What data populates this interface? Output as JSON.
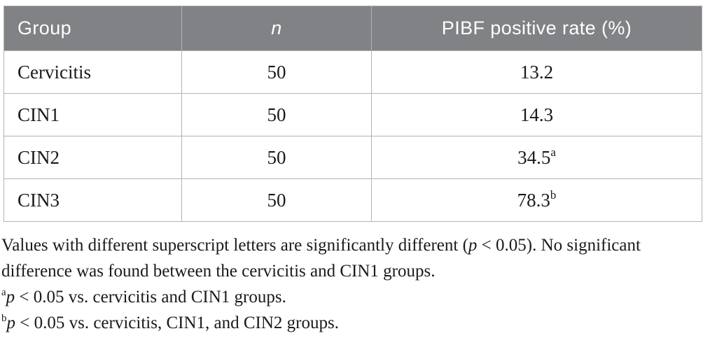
{
  "table": {
    "headers": [
      {
        "label": "Group"
      },
      {
        "label": "n"
      },
      {
        "label": "PIBF positive rate (%)"
      }
    ],
    "rows": [
      {
        "group": "Cervicitis",
        "n": "50",
        "rate": "13.2",
        "sup": ""
      },
      {
        "group": "CIN1",
        "n": "50",
        "rate": "14.3",
        "sup": ""
      },
      {
        "group": "CIN2",
        "n": "50",
        "rate": "34.5",
        "sup": "a"
      },
      {
        "group": "CIN3",
        "n": "50",
        "rate": "78.3",
        "sup": "b"
      }
    ]
  },
  "footnotes": {
    "general": {
      "line1_pre": "Values with different superscript letters are significantly different (",
      "line1_p": "p",
      "line1_post": " < 0.05). No significant",
      "line2": "difference was found between the cervicitis and CIN1 groups."
    },
    "a": {
      "sup": "a",
      "p": "p",
      "text": " < 0.05 vs. cervicitis and CIN1 groups."
    },
    "b": {
      "sup": "b",
      "p": "p",
      "text": " < 0.05 vs. cervicitis, CIN1, and CIN2 groups."
    }
  },
  "colors": {
    "header_bg": "#808285",
    "header_text": "#ffffff",
    "border": "#b3b3b3",
    "body_text": "#1a1a1a"
  }
}
